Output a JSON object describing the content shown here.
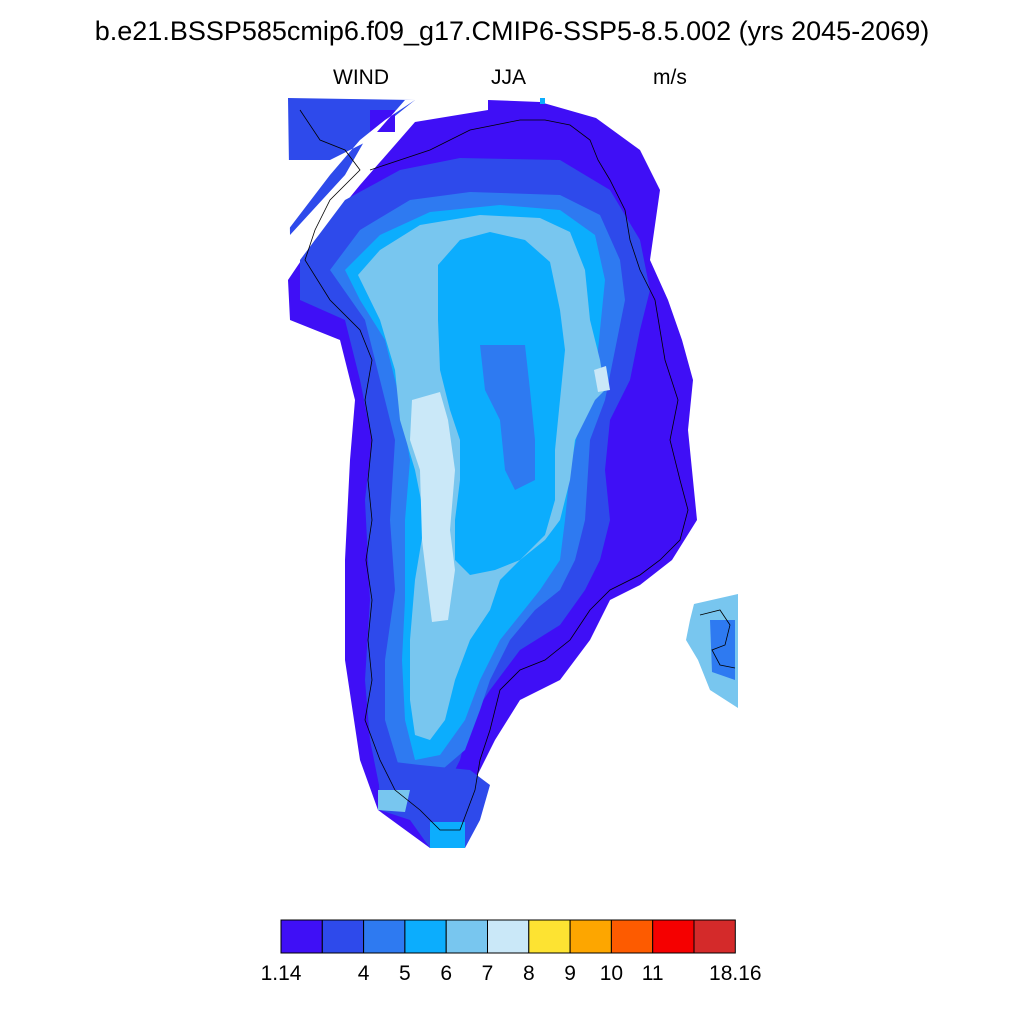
{
  "title": "b.e21.BSSP585cmip6.f09_g17.CMIP6-SSP5-8.5.002 (yrs 2045-2069)",
  "variable": "WIND",
  "season": "JJA",
  "units": "m/s",
  "colorbar": {
    "colors": [
      "#3f0ff6",
      "#2e4aeb",
      "#2e7af1",
      "#0cadfd",
      "#78c6ef",
      "#cae8f8",
      "#fde332",
      "#fda600",
      "#fd5b00",
      "#f50000",
      "#d42a2a"
    ],
    "labels": [
      "1.14",
      "",
      "4",
      "5",
      "6",
      "7",
      "8",
      "9",
      "10",
      "11",
      "",
      "18.16"
    ]
  }
}
